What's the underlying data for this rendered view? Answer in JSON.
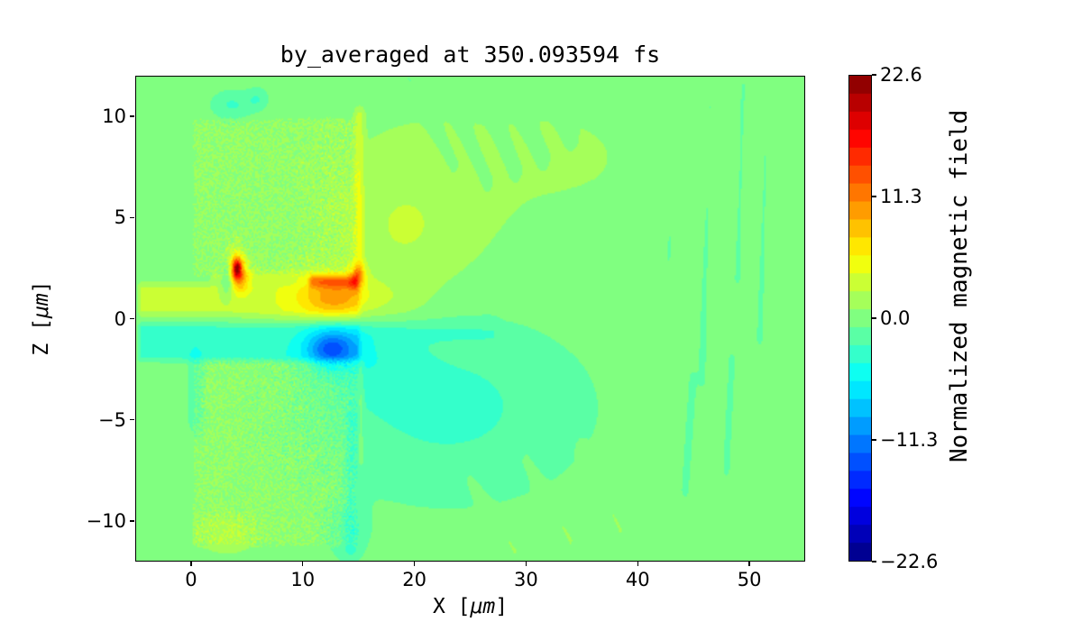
{
  "title": "by_averaged at 350.093594 fs",
  "axes": {
    "x": {
      "label_main": "X [",
      "label_math": "μm",
      "label_close": "]",
      "ticks": [
        {
          "label": "0",
          "value": 0
        },
        {
          "label": "10",
          "value": 10
        },
        {
          "label": "20",
          "value": 20
        },
        {
          "label": "30",
          "value": 30
        },
        {
          "label": "40",
          "value": 40
        },
        {
          "label": "50",
          "value": 50
        }
      ]
    },
    "z": {
      "label_main": "Z [",
      "label_math": "μm",
      "label_close": "]",
      "ticks": [
        {
          "label": "10",
          "value": 10
        },
        {
          "label": "5",
          "value": 5
        },
        {
          "label": "0",
          "value": 0
        },
        {
          "label": "−5",
          "value": -5
        },
        {
          "label": "−10",
          "value": -10
        }
      ]
    }
  },
  "colorbar": {
    "label": "Normalized magnetic field",
    "ticks": [
      {
        "label": "22.6",
        "value": 22.6
      },
      {
        "label": "11.3",
        "value": 11.3
      },
      {
        "label": "0.0",
        "value": 0
      },
      {
        "label": "−11.3",
        "value": -11.3
      },
      {
        "label": "−22.6",
        "value": -22.6
      }
    ]
  },
  "chart_data": {
    "type": "heatmap",
    "title": "by_averaged at 350.093594 fs",
    "xlabel": "X [μm]",
    "ylabel": "Z [μm]",
    "colorbar_label": "Normalized magnetic field",
    "x_range": [
      -5,
      55
    ],
    "z_range": [
      -12,
      12
    ],
    "value_range": [
      -22.6,
      22.6
    ],
    "colormap": "jet",
    "levels": 27,
    "background_value": 0,
    "features": [
      {
        "type": "rect",
        "name": "target-block-upper",
        "x": [
          0,
          15
        ],
        "z": [
          2.0,
          10.05
        ],
        "value": 0.8,
        "noise": 1.4,
        "soft": 0.3
      },
      {
        "type": "rect",
        "name": "target-block-lower",
        "x": [
          0,
          15
        ],
        "z": [
          -11.4,
          -1.9
        ],
        "value": 0.8,
        "noise": 1.4,
        "soft": 0.3
      },
      {
        "type": "rect",
        "name": "channel-upper-band",
        "x": [
          -5,
          15.3
        ],
        "z": [
          -0.05,
          2.0
        ],
        "value": 2.6,
        "soft": 0.45
      },
      {
        "type": "rect",
        "name": "channel-lower-band",
        "x": [
          -5,
          15.3
        ],
        "z": [
          -2.3,
          -0.05
        ],
        "value": -3.2,
        "soft": 0.45
      },
      {
        "type": "gauss",
        "name": "laser-pulse-orange",
        "cx": 12.8,
        "cz": 1.05,
        "sx": 2.0,
        "sz": 0.7,
        "amp": 5.5
      },
      {
        "type": "gauss",
        "name": "laser-pulse-halo",
        "cx": 11.0,
        "cz": 0.95,
        "sx": 4.0,
        "sz": 1.05,
        "amp": 2.2
      },
      {
        "type": "line",
        "name": "orange-filament",
        "x1": 10.8,
        "z1": 1.85,
        "x2": 14.6,
        "z2": 1.8,
        "w": 0.22,
        "amp": 6.5
      },
      {
        "type": "line",
        "name": "channel-top-glow",
        "x1": 2.0,
        "z1": 2.05,
        "x2": 14.8,
        "z2": 2.05,
        "w": 0.18,
        "amp": 2.2
      },
      {
        "type": "gauss",
        "name": "hotspot-outer-halo",
        "cx": 4.0,
        "cz": 2.4,
        "sx": 0.75,
        "sz": 0.7,
        "amp": 6
      },
      {
        "type": "gauss",
        "name": "hotspot-red-ring",
        "cx": 4.05,
        "cz": 2.45,
        "sx": 0.38,
        "sz": 0.42,
        "amp": 10
      },
      {
        "type": "gauss",
        "name": "hotspot-dark-core",
        "cx": 4.05,
        "cz": 2.5,
        "sx": 0.2,
        "sz": 0.24,
        "amp": 7
      },
      {
        "type": "gauss",
        "name": "hotspot-tail",
        "cx": 4.6,
        "cz": 1.8,
        "sx": 0.5,
        "sz": 0.4,
        "amp": 2.5
      },
      {
        "type": "gauss",
        "name": "hotspot-cyan-notch",
        "cx": 3.2,
        "cz": 1.95,
        "sx": 0.42,
        "sz": 0.6,
        "amp": -5.5
      },
      {
        "type": "gauss",
        "name": "return-field-blue-blob",
        "cx": 12.6,
        "cz": -1.4,
        "sx": 1.9,
        "sz": 0.8,
        "amp": -5.5
      },
      {
        "type": "gauss",
        "name": "return-field-blue-core",
        "cx": 12.4,
        "cz": -1.5,
        "sx": 1.2,
        "sz": 0.5,
        "amp": -3.5
      },
      {
        "type": "gauss",
        "name": "cyan-wedge-behind-target",
        "cx": 23,
        "cz": -4.3,
        "sx": 8.5,
        "sz": 3.2,
        "amp": -3.0
      },
      {
        "type": "gauss",
        "name": "cyan-near-rear-surface",
        "cx": 16.5,
        "cz": -1.8,
        "sx": 3.0,
        "sz": 1.5,
        "amp": -2.2
      },
      {
        "type": "gauss",
        "name": "yellow-wedge-above-channel",
        "cx": 19,
        "cz": 4.3,
        "sx": 4.2,
        "sz": 2.6,
        "amp": 2.3
      },
      {
        "type": "gauss",
        "name": "yellow-exit-spray",
        "cx": 17.5,
        "cz": 0.7,
        "sx": 2.6,
        "sz": 0.8,
        "amp": 1.8
      },
      {
        "type": "line",
        "name": "front-surface-glow",
        "x1": 15.05,
        "z1": 2.3,
        "x2": 15.05,
        "z2": 10.0,
        "w": 0.28,
        "amp": 3.0
      },
      {
        "type": "gauss",
        "name": "front-surface-hot",
        "cx": 14.9,
        "cz": 2.1,
        "sx": 0.5,
        "sz": 0.45,
        "amp": 6.5
      },
      {
        "type": "line",
        "name": "rear-surface-glow",
        "x1": 15.15,
        "z1": -2.3,
        "x2": 15.15,
        "z2": -7.0,
        "w": 0.2,
        "amp": 2.0
      },
      {
        "type": "line",
        "name": "rear-cyan-strip",
        "x1": 14.5,
        "z1": -5.0,
        "x2": 14.3,
        "z2": -11.3,
        "w": 0.45,
        "amp": -2.0
      },
      {
        "type": "gauss",
        "name": "rear-bottom-cyan-corner",
        "cx": 14.0,
        "cz": -10.6,
        "sx": 1.3,
        "sz": 1.0,
        "amp": -2.0
      },
      {
        "type": "line",
        "name": "front-inner-teal-strip",
        "x1": 0.35,
        "z1": -2.0,
        "x2": 0.35,
        "z2": -5.0,
        "w": 0.5,
        "amp": -1.8
      },
      {
        "type": "gauss",
        "name": "teal-patch-top-a",
        "cx": 3.6,
        "cz": 10.6,
        "sx": 1.3,
        "sz": 0.5,
        "amp": -2.8
      },
      {
        "type": "gauss",
        "name": "teal-patch-top-b",
        "cx": 5.9,
        "cz": 10.9,
        "sx": 0.7,
        "sz": 0.4,
        "amp": -2.3
      },
      {
        "type": "gauss",
        "name": "bottom-bright-patch",
        "cx": 3.2,
        "cz": -10.7,
        "sx": 2.3,
        "sz": 0.8,
        "amp": 1.7
      },
      {
        "type": "gauss",
        "name": "upper-right-tint",
        "cx": 32,
        "cz": 8,
        "sx": 14,
        "sz": 4.5,
        "amp": 0.9
      },
      {
        "type": "line",
        "name": "cyan-line-right",
        "x1": 15.5,
        "z1": -0.6,
        "x2": 27,
        "z2": -0.7,
        "w": 0.4,
        "amp": -1.4
      },
      {
        "type": "line",
        "name": "streak-upper-1",
        "x1": 19.5,
        "z1": 11.9,
        "x2": 23.5,
        "z2": 7.6,
        "w": 0.28,
        "amp": -1.3
      },
      {
        "type": "line",
        "name": "streak-upper-2",
        "x1": 22.5,
        "z1": 11.7,
        "x2": 26.5,
        "z2": 6.8,
        "w": 0.28,
        "amp": -1.3
      },
      {
        "type": "line",
        "name": "streak-upper-3",
        "x1": 25.5,
        "z1": 11.9,
        "x2": 29.0,
        "z2": 7.4,
        "w": 0.28,
        "amp": -1.3
      },
      {
        "type": "line",
        "name": "streak-upper-4",
        "x1": 28.5,
        "z1": 11.3,
        "x2": 31.5,
        "z2": 8.0,
        "w": 0.28,
        "amp": -1.2
      },
      {
        "type": "line",
        "name": "streak-upper-5",
        "x1": 31.5,
        "z1": 11.9,
        "x2": 34.0,
        "z2": 9.0,
        "w": 0.28,
        "amp": -1.2
      },
      {
        "type": "line",
        "name": "streak-right-1",
        "x1": 43.5,
        "z1": 11.5,
        "x2": 42.8,
        "z2": 3.0,
        "w": 0.3,
        "amp": -1.3
      },
      {
        "type": "line",
        "name": "streak-right-2",
        "x1": 46.5,
        "z1": 10.5,
        "x2": 45.8,
        "z2": -3.0,
        "w": 0.3,
        "amp": -1.3
      },
      {
        "type": "line",
        "name": "streak-right-3",
        "x1": 49.5,
        "z1": 11.5,
        "x2": 49.0,
        "z2": 2.0,
        "w": 0.3,
        "amp": -1.3
      },
      {
        "type": "line",
        "name": "streak-right-4",
        "x1": 51.5,
        "z1": 8.0,
        "x2": 51.0,
        "z2": -1.0,
        "w": 0.3,
        "amp": -1.2
      },
      {
        "type": "line",
        "name": "streak-right-5",
        "x1": 45.0,
        "z1": -3.0,
        "x2": 44.3,
        "z2": -8.5,
        "w": 0.3,
        "amp": -1.3
      },
      {
        "type": "line",
        "name": "streak-right-6",
        "x1": 48.5,
        "z1": -2.0,
        "x2": 48.0,
        "z2": -7.5,
        "w": 0.3,
        "amp": -1.2
      },
      {
        "type": "line",
        "name": "streak-bottom-1",
        "x1": 25.0,
        "z1": -8.0,
        "x2": 29.0,
        "z2": -11.5,
        "w": 0.3,
        "amp": 1.1
      },
      {
        "type": "line",
        "name": "streak-bottom-2",
        "x1": 30.0,
        "z1": -7.0,
        "x2": 34.0,
        "z2": -11.0,
        "w": 0.3,
        "amp": 1.1
      },
      {
        "type": "line",
        "name": "streak-bottom-3",
        "x1": 35.0,
        "z1": -6.5,
        "x2": 38.5,
        "z2": -10.5,
        "w": 0.3,
        "amp": 1.0
      }
    ]
  }
}
